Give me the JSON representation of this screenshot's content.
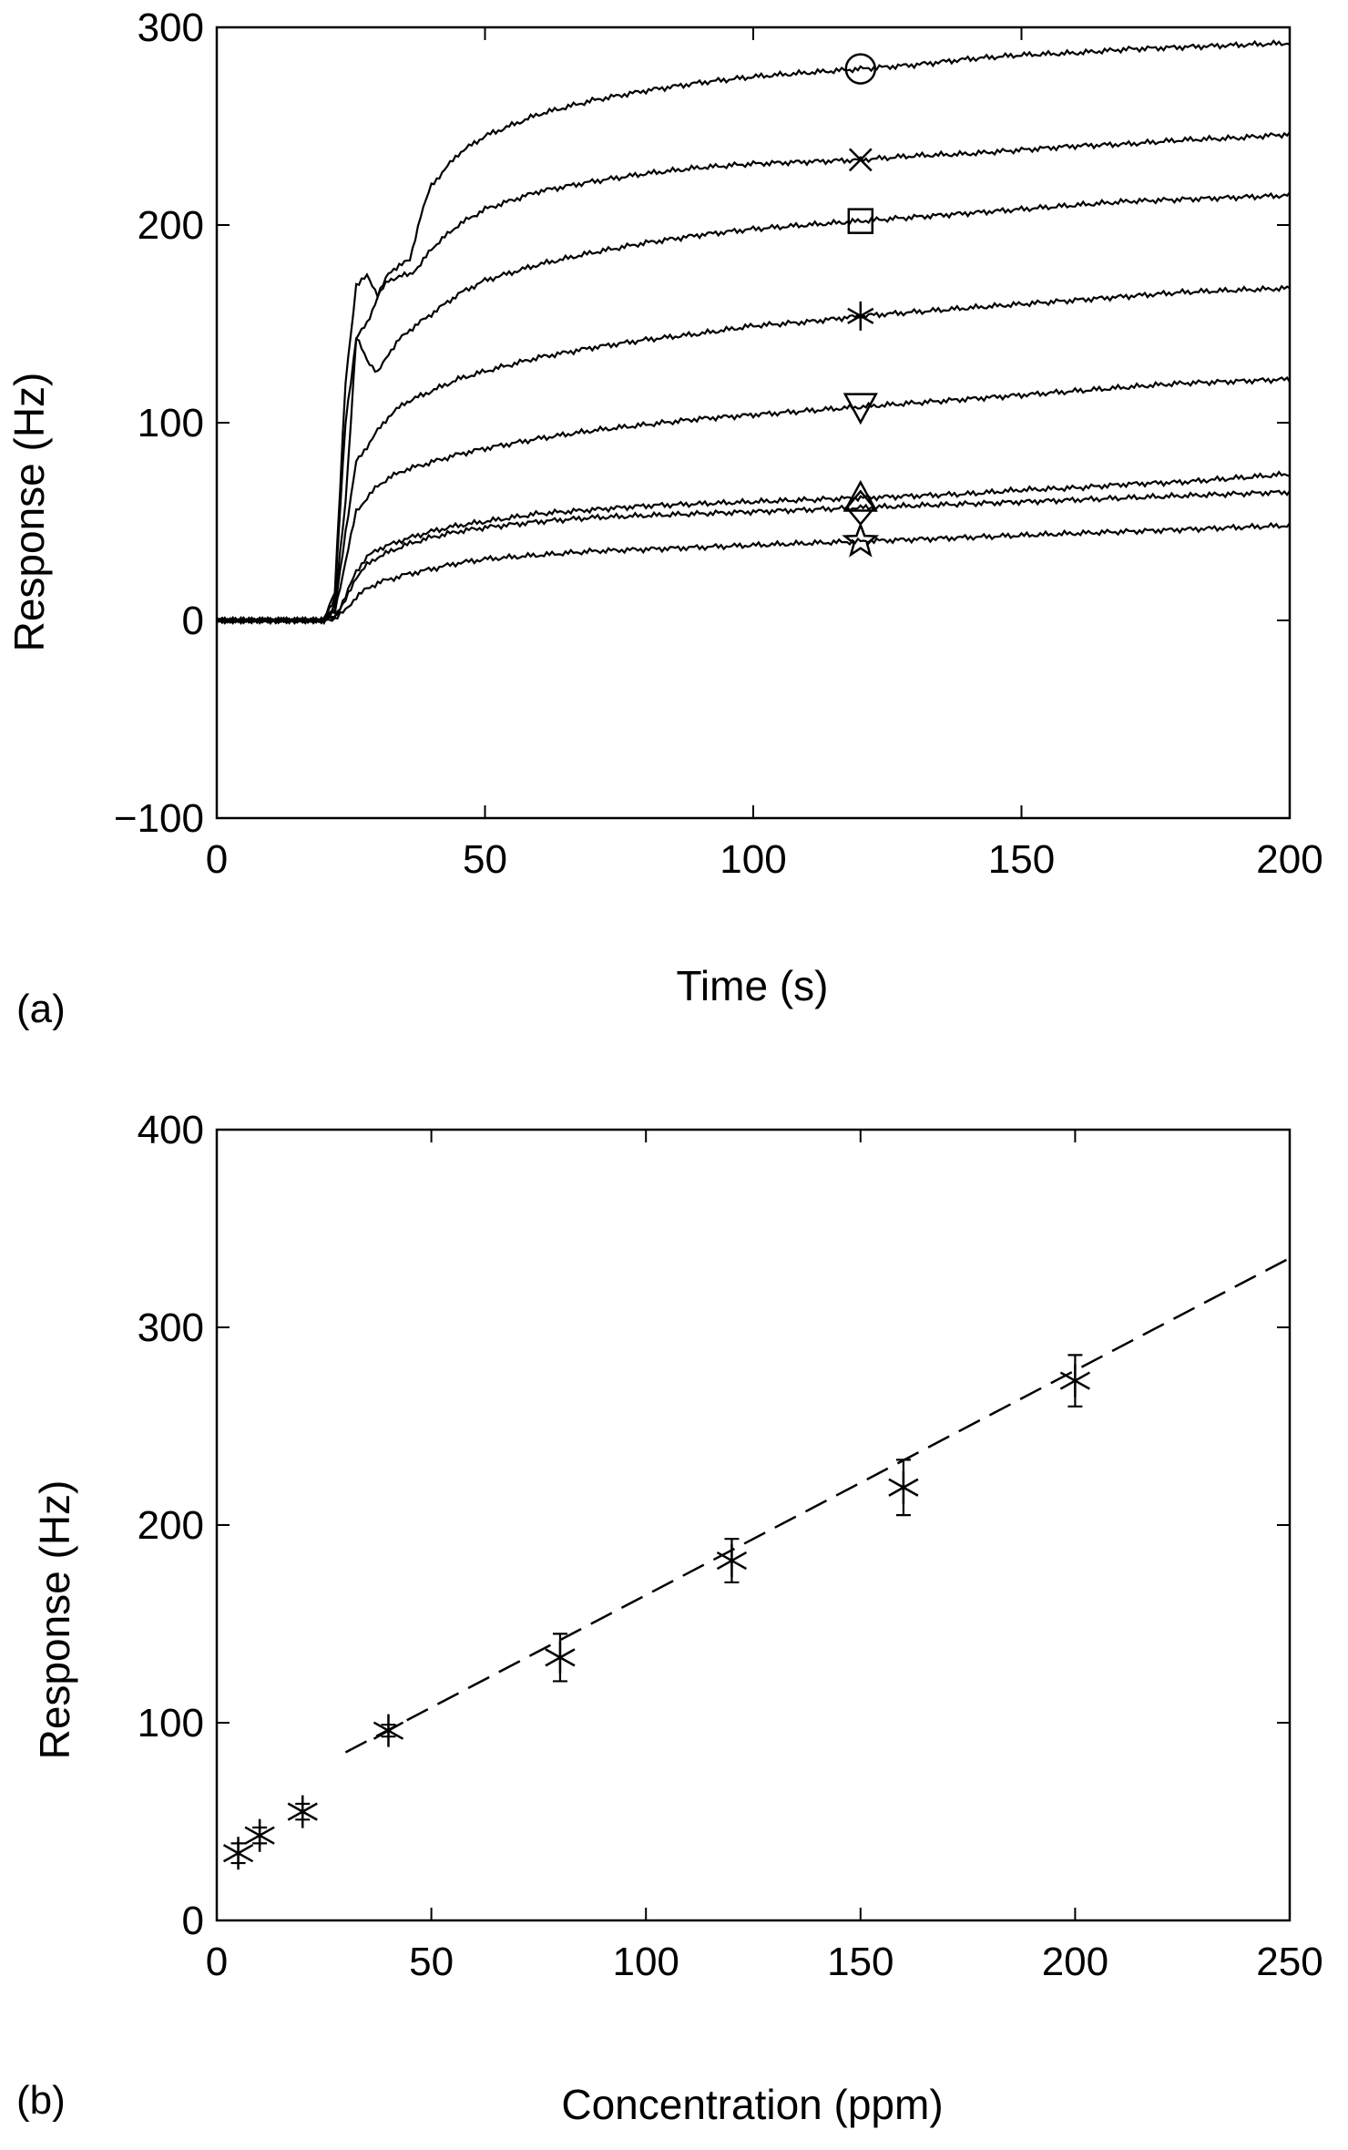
{
  "chart_data": [
    {
      "panel_label": "(a)",
      "type": "line",
      "title": "",
      "xlabel": "Time (s)",
      "ylabel": "Response (Hz)",
      "xlim": [
        0,
        200
      ],
      "ylim": [
        -100,
        300
      ],
      "xticks": [
        0,
        50,
        100,
        150,
        200
      ],
      "xtick_labels": [
        "0",
        "50",
        "100",
        "150",
        "200"
      ],
      "yticks": [
        -100,
        0,
        100,
        200,
        300
      ],
      "ytick_labels": [
        "−100",
        "0",
        "100",
        "200",
        "300"
      ],
      "grid": false,
      "marker_x": 120,
      "series": [
        {
          "name": "circle",
          "marker": "circle",
          "x": [
            0,
            10,
            20,
            22,
            24,
            26,
            28,
            30,
            32,
            34,
            36,
            38,
            40,
            45,
            50,
            60,
            70,
            80,
            90,
            100,
            110,
            120,
            130,
            140,
            150,
            160,
            170,
            180,
            190,
            200
          ],
          "values": [
            0,
            0,
            0,
            15,
            120,
            170,
            174,
            165,
            175,
            180,
            182,
            205,
            220,
            236,
            245,
            256,
            263,
            268,
            272,
            275,
            277,
            279,
            281,
            284,
            286,
            287,
            289,
            290,
            291,
            292
          ]
        },
        {
          "name": "x-mark",
          "marker": "x",
          "x": [
            0,
            10,
            20,
            22,
            24,
            26,
            28,
            30,
            32,
            34,
            36,
            38,
            40,
            45,
            50,
            60,
            70,
            80,
            90,
            100,
            110,
            120,
            130,
            140,
            150,
            160,
            170,
            180,
            190,
            200
          ],
          "values": [
            0,
            0,
            0,
            12,
            100,
            143,
            150,
            164,
            172,
            174,
            175,
            180,
            188,
            200,
            208,
            217,
            222,
            226,
            229,
            231,
            232,
            233,
            235,
            236,
            238,
            240,
            241,
            243,
            244,
            246
          ]
        },
        {
          "name": "square",
          "marker": "square",
          "x": [
            0,
            10,
            20,
            22,
            24,
            26,
            28,
            30,
            32,
            34,
            36,
            40,
            45,
            50,
            60,
            70,
            80,
            90,
            100,
            110,
            120,
            130,
            140,
            150,
            160,
            170,
            180,
            190,
            200
          ],
          "values": [
            0,
            0,
            0,
            8,
            60,
            143,
            132,
            125,
            135,
            142,
            147,
            155,
            165,
            172,
            180,
            186,
            191,
            195,
            198,
            200,
            202,
            204,
            206,
            208,
            210,
            212,
            213,
            214,
            215
          ]
        },
        {
          "name": "asterisk",
          "marker": "asterisk",
          "x": [
            0,
            10,
            20,
            22,
            24,
            26,
            28,
            30,
            32,
            35,
            40,
            45,
            50,
            60,
            70,
            80,
            90,
            100,
            110,
            120,
            130,
            140,
            150,
            160,
            170,
            180,
            190,
            200
          ],
          "values": [
            0,
            0,
            0,
            5,
            45,
            80,
            88,
            96,
            103,
            110,
            116,
            122,
            126,
            133,
            138,
            142,
            145,
            149,
            151,
            154,
            156,
            158,
            160,
            162,
            164,
            166,
            167,
            168
          ]
        },
        {
          "name": "triangle-down",
          "marker": "triangle-down",
          "x": [
            0,
            10,
            20,
            22,
            24,
            26,
            28,
            30,
            32,
            35,
            40,
            45,
            50,
            60,
            70,
            80,
            90,
            100,
            110,
            120,
            130,
            140,
            150,
            160,
            170,
            180,
            190,
            200
          ],
          "values": [
            0,
            0,
            0,
            4,
            30,
            55,
            62,
            68,
            72,
            76,
            80,
            84,
            87,
            92,
            96,
            99,
            102,
            104,
            106,
            108,
            110,
            112,
            114,
            116,
            118,
            120,
            121,
            122
          ]
        },
        {
          "name": "triangle-up",
          "marker": "triangle-up",
          "x": [
            0,
            10,
            20,
            22,
            24,
            26,
            28,
            30,
            35,
            40,
            45,
            50,
            60,
            70,
            80,
            90,
            100,
            110,
            120,
            130,
            140,
            150,
            160,
            170,
            180,
            190,
            200
          ],
          "values": [
            0,
            0,
            0,
            2,
            12,
            25,
            32,
            36,
            41,
            45,
            48,
            50,
            54,
            56,
            58,
            59,
            60,
            61,
            62,
            63,
            64,
            66,
            67,
            69,
            70,
            72,
            74
          ]
        },
        {
          "name": "diamond",
          "marker": "diamond",
          "x": [
            0,
            10,
            20,
            22,
            24,
            26,
            28,
            30,
            35,
            40,
            45,
            50,
            60,
            70,
            80,
            90,
            100,
            110,
            120,
            130,
            140,
            150,
            160,
            170,
            180,
            190,
            200
          ],
          "values": [
            0,
            0,
            0,
            2,
            10,
            22,
            28,
            32,
            38,
            42,
            45,
            47,
            50,
            52,
            53,
            54,
            55,
            56,
            57,
            58,
            59,
            60,
            61,
            62,
            63,
            64,
            65
          ]
        },
        {
          "name": "star",
          "marker": "star",
          "x": [
            0,
            10,
            20,
            22,
            24,
            26,
            28,
            30,
            35,
            40,
            45,
            50,
            60,
            70,
            80,
            90,
            100,
            110,
            120,
            130,
            140,
            150,
            160,
            170,
            180,
            190,
            200
          ],
          "values": [
            0,
            0,
            0,
            1,
            5,
            12,
            16,
            19,
            23,
            26,
            29,
            31,
            33,
            35,
            36,
            37,
            38,
            39,
            40,
            41,
            42,
            43,
            44,
            45,
            46,
            47,
            48
          ]
        }
      ]
    },
    {
      "panel_label": "(b)",
      "type": "scatter",
      "title": "",
      "xlabel": "Concentration (ppm)",
      "ylabel": "Response (Hz)",
      "xlim": [
        0,
        250
      ],
      "ylim": [
        0,
        400
      ],
      "xticks": [
        0,
        50,
        100,
        150,
        200,
        250
      ],
      "xtick_labels": [
        "0",
        "50",
        "100",
        "150",
        "200",
        "250"
      ],
      "yticks": [
        0,
        100,
        200,
        300,
        400
      ],
      "ytick_labels": [
        "0",
        "100",
        "200",
        "300",
        "400"
      ],
      "grid": false,
      "points": {
        "x": [
          5,
          10,
          20,
          40,
          80,
          120,
          160,
          200
        ],
        "values": [
          34,
          43,
          55,
          96,
          133,
          182,
          219,
          273
        ],
        "errors": [
          5,
          4,
          4,
          3,
          12,
          11,
          14,
          13
        ]
      },
      "fit_line": {
        "style": "dashed",
        "x": [
          30,
          250
        ],
        "y": [
          85,
          335
        ]
      }
    }
  ]
}
